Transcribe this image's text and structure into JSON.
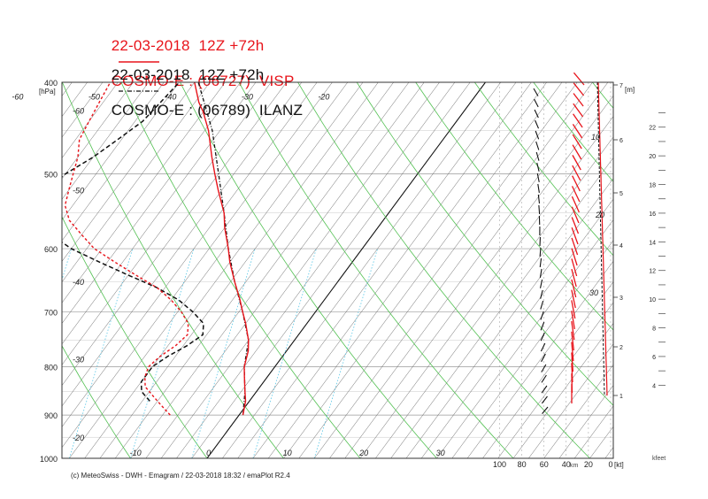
{
  "header": {
    "line1": {
      "left": "22-03-2018  12Z +72h",
      "right": "COSMO-E : (06727)  VISP",
      "color": "#e8141b"
    },
    "line2": {
      "left": "22-03-2018  12Z +72h",
      "right": "COSMO-E : (06789)  ILANZ",
      "color": "#111111"
    }
  },
  "footer": "(c) MeteoSwiss - DWH - Emagram / 22-03-2018  18:32 / emaPlot R2.4",
  "chart_data": {
    "type": "line",
    "pressure_axis": {
      "unit_label": "[hPa]",
      "range": [
        400,
        1000
      ],
      "ticks": [
        400,
        500,
        600,
        700,
        800,
        900,
        1000
      ]
    },
    "temperature_labels": {
      "top": [
        "-60",
        "-50",
        "-40",
        "-30",
        "-20"
      ],
      "bottom": [
        "-10",
        "0",
        "10",
        "20",
        "30"
      ],
      "left": [
        "-60",
        "-50",
        "-40",
        "-30",
        "-20"
      ]
    },
    "height_scale_m": {
      "label": "[m]",
      "ticks": [
        "1",
        "2",
        "3",
        "4",
        "5",
        "6",
        "7"
      ],
      "unit_bottom": "km"
    },
    "height_scale_kfeet": {
      "ticks": [
        "4",
        "6",
        "8",
        "10",
        "12",
        "14",
        "16",
        "18",
        "20",
        "22"
      ],
      "unit_bottom": "kfeet"
    },
    "wind_speed_axis": {
      "ticks": [
        "100",
        "80",
        "60",
        "40",
        "20",
        "0"
      ],
      "unit": "[kt]",
      "inner_labels": [
        "10",
        "20",
        "30"
      ]
    },
    "series": [
      {
        "name": "COSMO-E : (06727)  VISP",
        "color": "#e8141b",
        "style": "solid",
        "temperature_profile": [
          [
            900,
            0.5
          ],
          [
            870,
            -0.5
          ],
          [
            850,
            -1.5
          ],
          [
            820,
            -3
          ],
          [
            800,
            -4
          ],
          [
            770,
            -5
          ],
          [
            750,
            -6
          ],
          [
            720,
            -8
          ],
          [
            700,
            -9.5
          ],
          [
            680,
            -11
          ],
          [
            650,
            -13.5
          ],
          [
            620,
            -16
          ],
          [
            600,
            -17.5
          ],
          [
            570,
            -20
          ],
          [
            550,
            -21.5
          ],
          [
            520,
            -24.5
          ],
          [
            500,
            -26.5
          ],
          [
            480,
            -28.5
          ],
          [
            450,
            -31.5
          ],
          [
            430,
            -34
          ],
          [
            420,
            -35.5
          ],
          [
            400,
            -38
          ]
        ],
        "dewpoint_profile": [
          [
            900,
            -9
          ],
          [
            880,
            -11
          ],
          [
            860,
            -13
          ],
          [
            840,
            -15
          ],
          [
            820,
            -16
          ],
          [
            800,
            -16.5
          ],
          [
            780,
            -16
          ],
          [
            760,
            -15
          ],
          [
            740,
            -14.5
          ],
          [
            720,
            -15.5
          ],
          [
            700,
            -17.5
          ],
          [
            680,
            -20
          ],
          [
            660,
            -23
          ],
          [
            640,
            -27
          ],
          [
            620,
            -31
          ],
          [
            600,
            -35
          ],
          [
            580,
            -38
          ],
          [
            560,
            -41
          ],
          [
            540,
            -43
          ],
          [
            520,
            -44
          ],
          [
            500,
            -45
          ],
          [
            480,
            -46
          ],
          [
            460,
            -47.5
          ],
          [
            440,
            -48
          ],
          [
            420,
            -48.5
          ],
          [
            400,
            -49
          ]
        ]
      },
      {
        "name": "COSMO-E : (06789)  ILANZ",
        "color": "#111111",
        "style": "dash-dot / dashed",
        "temperature_profile": [
          [
            900,
            0.5
          ],
          [
            850,
            -1.5
          ],
          [
            800,
            -4
          ],
          [
            750,
            -6
          ],
          [
            700,
            -9.5
          ],
          [
            650,
            -13.5
          ],
          [
            600,
            -17.5
          ],
          [
            550,
            -21.5
          ],
          [
            500,
            -26
          ],
          [
            450,
            -31
          ],
          [
            400,
            -37.5
          ]
        ],
        "dewpoint_profile": [
          [
            870,
            -13
          ],
          [
            850,
            -15
          ],
          [
            830,
            -16
          ],
          [
            800,
            -16
          ],
          [
            780,
            -15
          ],
          [
            760,
            -13.5
          ],
          [
            740,
            -12.5
          ],
          [
            720,
            -13.5
          ],
          [
            700,
            -16
          ],
          [
            680,
            -19
          ],
          [
            660,
            -23
          ],
          [
            640,
            -28
          ],
          [
            620,
            -33
          ],
          [
            600,
            -38
          ],
          [
            580,
            -42
          ],
          [
            560,
            -45
          ],
          [
            540,
            -47
          ],
          [
            520,
            -47
          ],
          [
            500,
            -46
          ],
          [
            480,
            -44
          ],
          [
            460,
            -42.5
          ],
          [
            440,
            -41
          ],
          [
            420,
            -40.5
          ],
          [
            400,
            -40
          ]
        ]
      }
    ]
  }
}
